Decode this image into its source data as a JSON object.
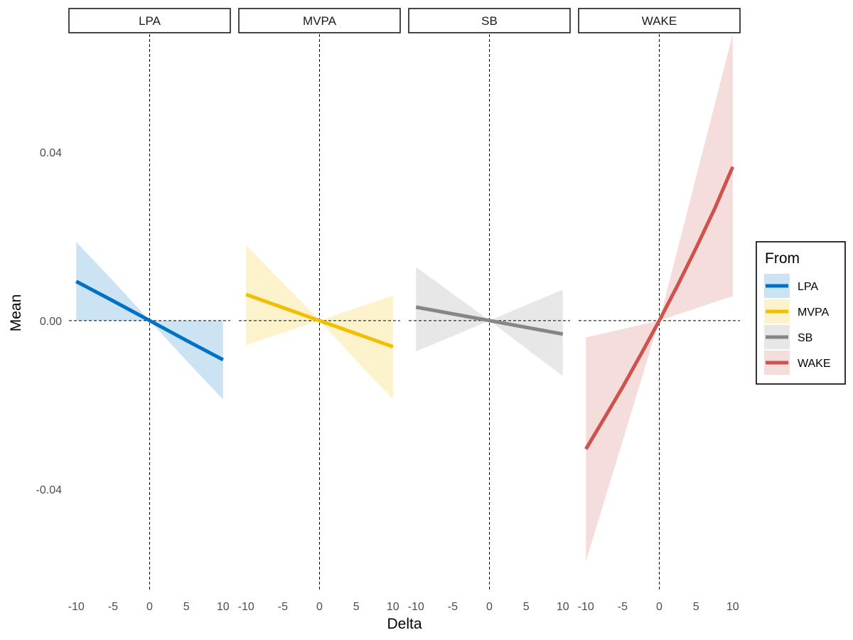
{
  "chart_data": {
    "type": "line",
    "xlabel": "Delta",
    "ylabel": "Mean",
    "xlim": [
      -10,
      10
    ],
    "ylim": [
      -0.064,
      0.068
    ],
    "x_ticks": [
      -10,
      -5,
      0,
      5,
      10
    ],
    "x_tick_labels": [
      "-10",
      "-5",
      "0",
      "5",
      "10"
    ],
    "y_ticks": [
      -0.04,
      0.0,
      0.04
    ],
    "y_tick_labels": [
      "-0.04",
      "0.00",
      "0.04"
    ],
    "reference_lines": {
      "x": 0,
      "y": 0,
      "style": "dashed"
    },
    "grid": false,
    "legend": {
      "title": "From",
      "placement": "right"
    },
    "facets": [
      {
        "label": "LPA",
        "series": {
          "name": "LPA",
          "color": "#0072C6",
          "x": [
            -10,
            -5,
            0,
            5,
            10
          ],
          "y": [
            0.0093,
            0.0047,
            0.0,
            -0.0047,
            -0.0093
          ],
          "lower": [
            0.0,
            0.0,
            0.0,
            -0.0095,
            -0.0187
          ],
          "upper": [
            0.0187,
            0.0095,
            0.0,
            0.0,
            0.0
          ]
        }
      },
      {
        "label": "MVPA",
        "series": {
          "name": "MVPA",
          "color": "#F0C000",
          "x": [
            -10,
            -5,
            0,
            5,
            10
          ],
          "y": [
            0.0062,
            0.0031,
            0.0,
            -0.0031,
            -0.0062
          ],
          "lower": [
            -0.0058,
            -0.0029,
            0.0,
            -0.0095,
            -0.0187
          ],
          "upper": [
            0.0179,
            0.009,
            0.0,
            0.003,
            0.0059
          ]
        }
      },
      {
        "label": "SB",
        "series": {
          "name": "SB",
          "color": "#868686",
          "x": [
            -10,
            -5,
            0,
            5,
            10
          ],
          "y": [
            0.0032,
            0.0016,
            0.0,
            -0.0016,
            -0.0032
          ],
          "lower": [
            -0.0073,
            -0.0037,
            0.0,
            -0.0066,
            -0.0132
          ],
          "upper": [
            0.0127,
            0.0064,
            0.0,
            0.0037,
            0.0073
          ]
        }
      },
      {
        "label": "WAKE",
        "series": {
          "name": "WAKE",
          "color": "#CD534C",
          "x": [
            -10,
            -7.5,
            -5,
            -2.5,
            0,
            2.5,
            5,
            7.5,
            10
          ],
          "y": [
            -0.0305,
            -0.0232,
            -0.0158,
            -0.008,
            0.0,
            0.0084,
            0.0172,
            0.0264,
            0.0365
          ],
          "lower": [
            -0.0572,
            -0.0429,
            -0.0286,
            -0.0143,
            0.0,
            0.0015,
            0.0029,
            0.0044,
            0.0058
          ],
          "upper": [
            -0.004,
            -0.003,
            -0.002,
            -0.001,
            0.0,
            0.017,
            0.034,
            0.051,
            0.068
          ]
        }
      }
    ]
  }
}
